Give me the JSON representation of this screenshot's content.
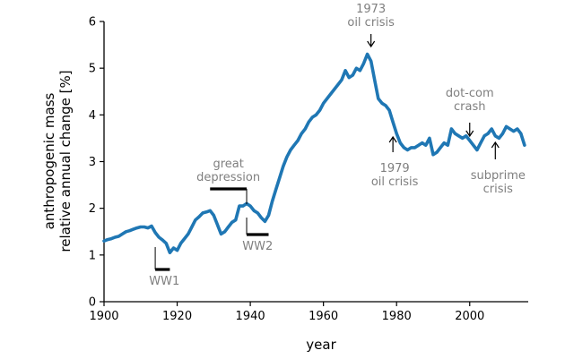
{
  "chart_data": {
    "type": "line",
    "title": "",
    "xlabel": "year",
    "ylabel_lines": [
      "anthropogenic mass",
      "relative annual change [%]"
    ],
    "xlim": [
      1900,
      2016
    ],
    "ylim": [
      0,
      6
    ],
    "xticks": [
      1900,
      1920,
      1940,
      1960,
      1980,
      2000
    ],
    "yticks": [
      0,
      1,
      2,
      3,
      4,
      5,
      6
    ],
    "grid": false,
    "line_color": "#1f77b4",
    "annotation_color": "#7f7f7f",
    "series": [
      {
        "x": [
          1900,
          1901,
          1902,
          1903,
          1904,
          1905,
          1906,
          1907,
          1908,
          1909,
          1910,
          1911,
          1912,
          1913,
          1914,
          1915,
          1916,
          1917,
          1918,
          1919,
          1920,
          1921,
          1922,
          1923,
          1924,
          1925,
          1926,
          1927,
          1928,
          1929,
          1930,
          1931,
          1932,
          1933,
          1934,
          1935,
          1936,
          1937,
          1938,
          1939,
          1940,
          1941,
          1942,
          1943,
          1944,
          1945,
          1946,
          1947,
          1948,
          1949,
          1950,
          1951,
          1952,
          1953,
          1954,
          1955,
          1956,
          1957,
          1958,
          1959,
          1960,
          1961,
          1962,
          1963,
          1964,
          1965,
          1966,
          1967,
          1968,
          1969,
          1970,
          1971,
          1972,
          1973,
          1974,
          1975,
          1976,
          1977,
          1978,
          1979,
          1980,
          1981,
          1982,
          1983,
          1984,
          1985,
          1986,
          1987,
          1988,
          1989,
          1990,
          1991,
          1992,
          1993,
          1994,
          1995,
          1996,
          1997,
          1998,
          1999,
          2000,
          2001,
          2002,
          2003,
          2004,
          2005,
          2006,
          2007,
          2008,
          2009,
          2010,
          2011,
          2012,
          2013,
          2014,
          2015
        ],
        "y": [
          1.3,
          1.33,
          1.35,
          1.38,
          1.4,
          1.45,
          1.5,
          1.52,
          1.55,
          1.58,
          1.6,
          1.6,
          1.58,
          1.62,
          1.48,
          1.38,
          1.32,
          1.25,
          1.05,
          1.15,
          1.1,
          1.25,
          1.35,
          1.45,
          1.6,
          1.75,
          1.82,
          1.9,
          1.92,
          1.95,
          1.85,
          1.65,
          1.45,
          1.5,
          1.6,
          1.7,
          1.75,
          2.05,
          2.05,
          2.1,
          2.05,
          1.95,
          1.9,
          1.8,
          1.72,
          1.85,
          2.15,
          2.4,
          2.65,
          2.9,
          3.1,
          3.25,
          3.35,
          3.45,
          3.6,
          3.7,
          3.85,
          3.95,
          4.0,
          4.1,
          4.25,
          4.35,
          4.45,
          4.55,
          4.65,
          4.75,
          4.95,
          4.8,
          4.85,
          5.0,
          4.95,
          5.1,
          5.3,
          5.15,
          4.75,
          4.35,
          4.25,
          4.2,
          4.1,
          3.85,
          3.6,
          3.4,
          3.3,
          3.25,
          3.3,
          3.3,
          3.35,
          3.4,
          3.35,
          3.5,
          3.15,
          3.2,
          3.3,
          3.4,
          3.35,
          3.7,
          3.6,
          3.55,
          3.5,
          3.55,
          3.45,
          3.35,
          3.25,
          3.4,
          3.55,
          3.6,
          3.7,
          3.55,
          3.5,
          3.6,
          3.75,
          3.7,
          3.65,
          3.7,
          3.6,
          3.35
        ]
      }
    ],
    "annotations": [
      {
        "id": "oil-crisis-1973",
        "lines": [
          "1973",
          "oil crisis"
        ],
        "x": 1973,
        "y": 5.3
      },
      {
        "id": "oil-crisis-1979",
        "lines": [
          "1979",
          "oil crisis"
        ],
        "x": 1979,
        "y": 3.6
      },
      {
        "id": "dotcom-crash",
        "lines": [
          "dot-com",
          "crash"
        ],
        "x": 2000,
        "y": 3.55
      },
      {
        "id": "subprime-crisis",
        "lines": [
          "subprime",
          "crisis"
        ],
        "x": 2007,
        "y": 3.55
      },
      {
        "id": "great-depression",
        "lines": [
          "great",
          "depression"
        ],
        "x_range": [
          1929,
          1939
        ]
      },
      {
        "id": "ww1",
        "lines": [
          "WW1"
        ],
        "x_range": [
          1914,
          1918
        ]
      },
      {
        "id": "ww2",
        "lines": [
          "WW2"
        ],
        "x_range": [
          1939,
          1945
        ]
      }
    ]
  }
}
